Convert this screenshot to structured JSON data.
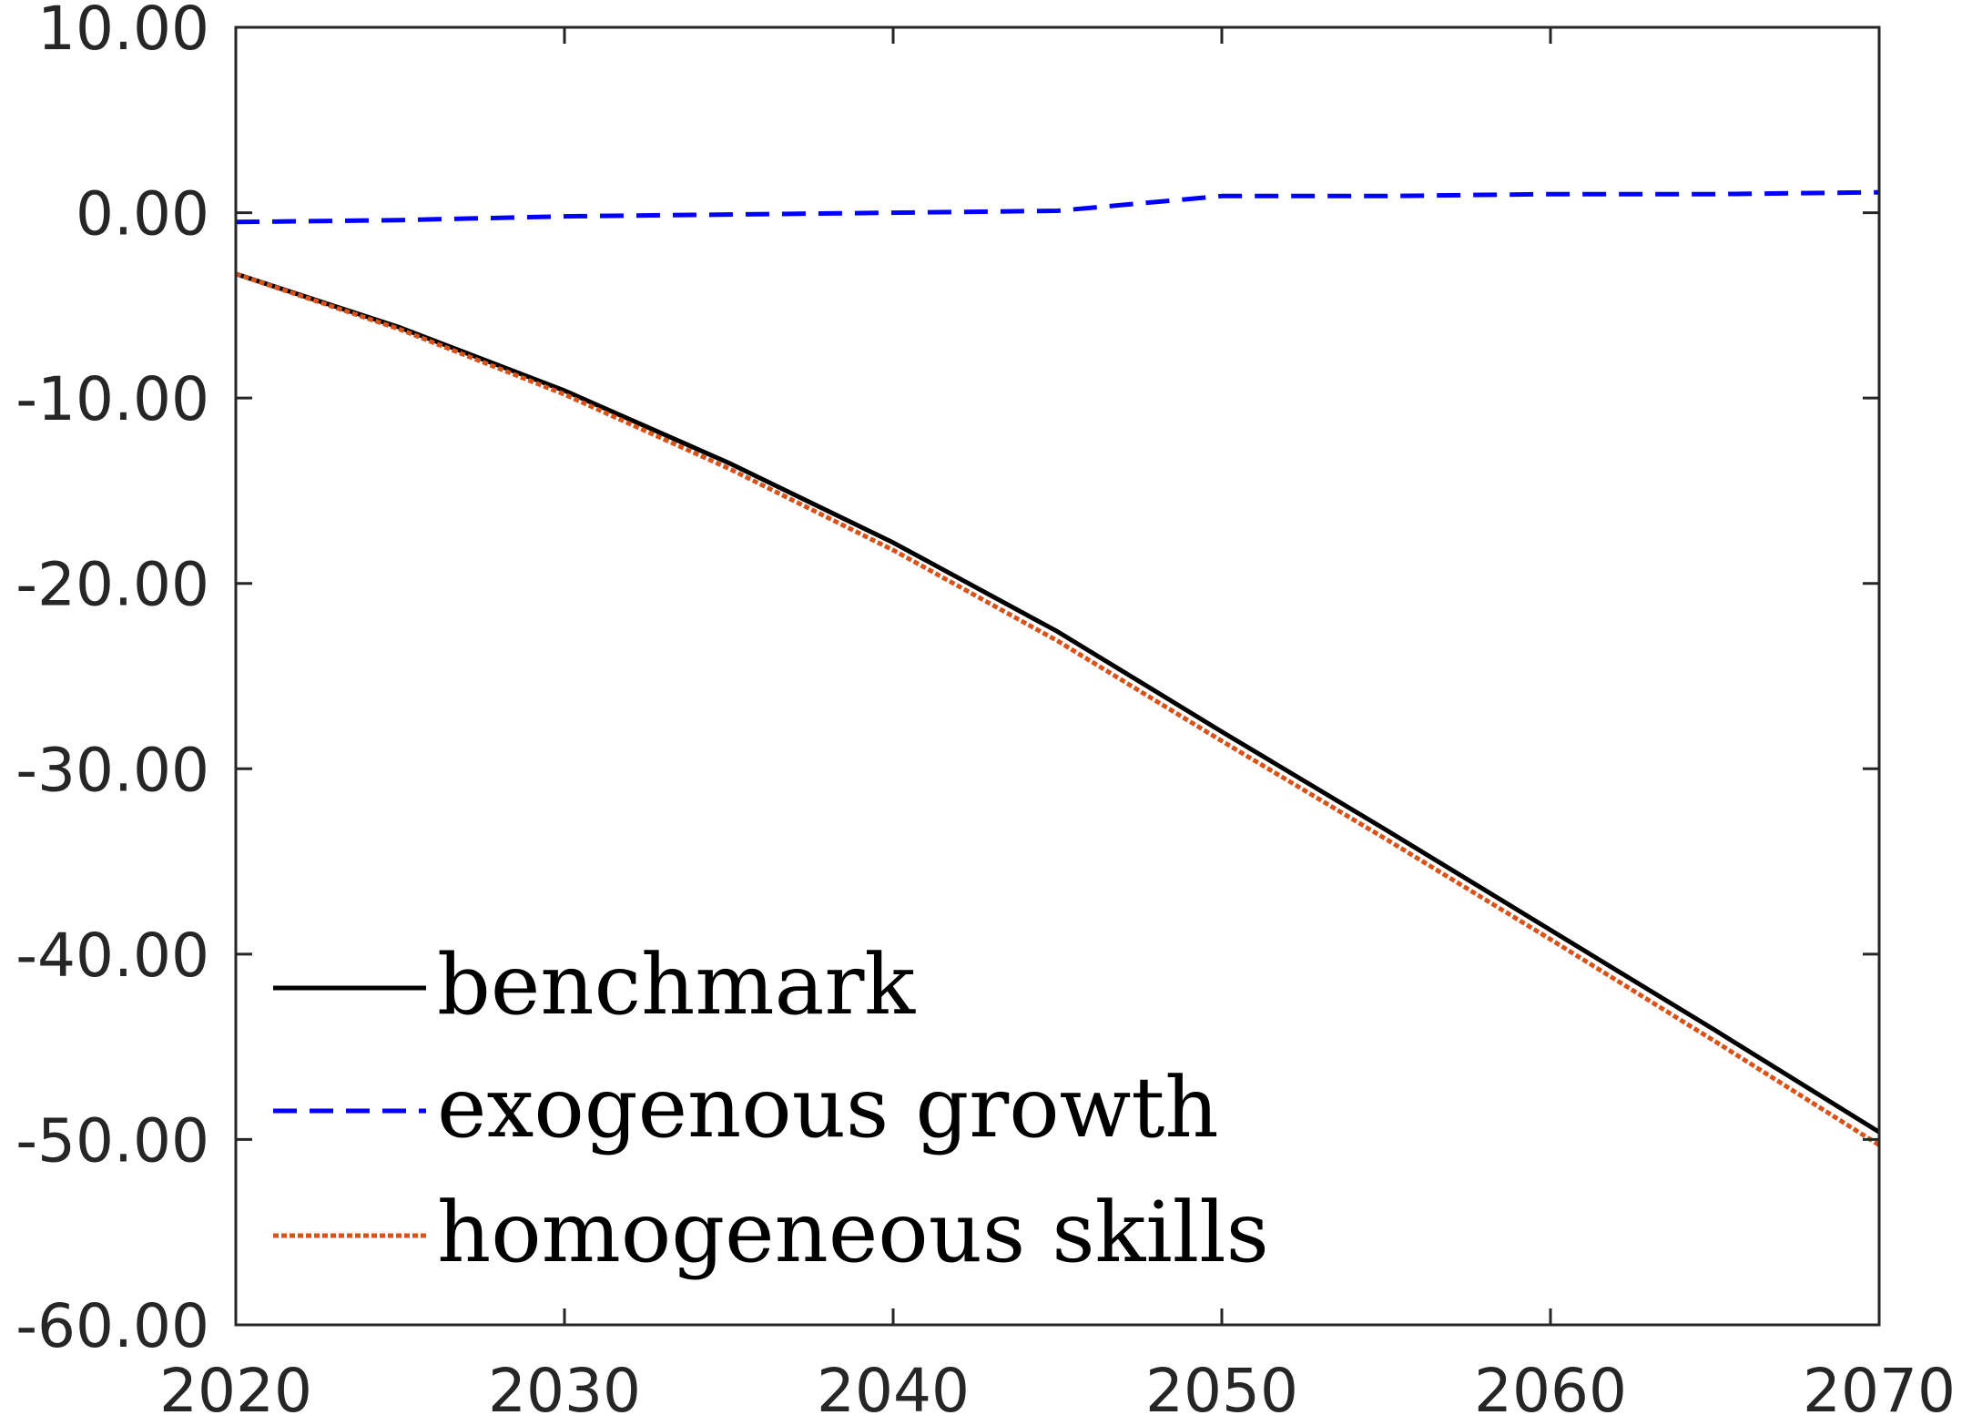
{
  "chart_data": {
    "type": "line",
    "title": "",
    "xlabel": "",
    "ylabel": "",
    "xlim": [
      2020,
      2070
    ],
    "ylim": [
      -60,
      10
    ],
    "xticks": [
      2020,
      2030,
      2040,
      2050,
      2060,
      2070
    ],
    "yticks": [
      10,
      0,
      -10,
      -20,
      -30,
      -40,
      -50,
      -60
    ],
    "xtick_labels": [
      "2020",
      "2030",
      "2040",
      "2050",
      "2060",
      "2070"
    ],
    "ytick_labels": [
      "10.00",
      "0.00",
      "-10.00",
      "-20.00",
      "-30.00",
      "-40.00",
      "-50.00",
      "-60.00"
    ],
    "grid": false,
    "box": true,
    "legend_position": "bottom-left",
    "x": [
      2020,
      2025,
      2030,
      2035,
      2040,
      2045,
      2050,
      2055,
      2060,
      2065,
      2070
    ],
    "series": [
      {
        "name": "benchmark",
        "color": "#000000",
        "style": "solid",
        "values": [
          -3.3,
          -6.2,
          -9.6,
          -13.5,
          -17.8,
          -22.6,
          -28.0,
          -33.3,
          -38.7,
          -44.1,
          -49.6
        ]
      },
      {
        "name": "exogenous growth",
        "color": "#0000ff",
        "style": "dashed",
        "values": [
          -0.5,
          -0.4,
          -0.2,
          -0.1,
          0.0,
          0.1,
          0.9,
          0.9,
          1.0,
          1.0,
          1.1
        ]
      },
      {
        "name": "homogeneous skills",
        "color": "#d95319",
        "style": "dotted",
        "values": [
          -3.3,
          -6.3,
          -9.8,
          -13.8,
          -18.2,
          -23.1,
          -28.5,
          -33.8,
          -39.2,
          -44.7,
          -50.3
        ]
      }
    ]
  }
}
